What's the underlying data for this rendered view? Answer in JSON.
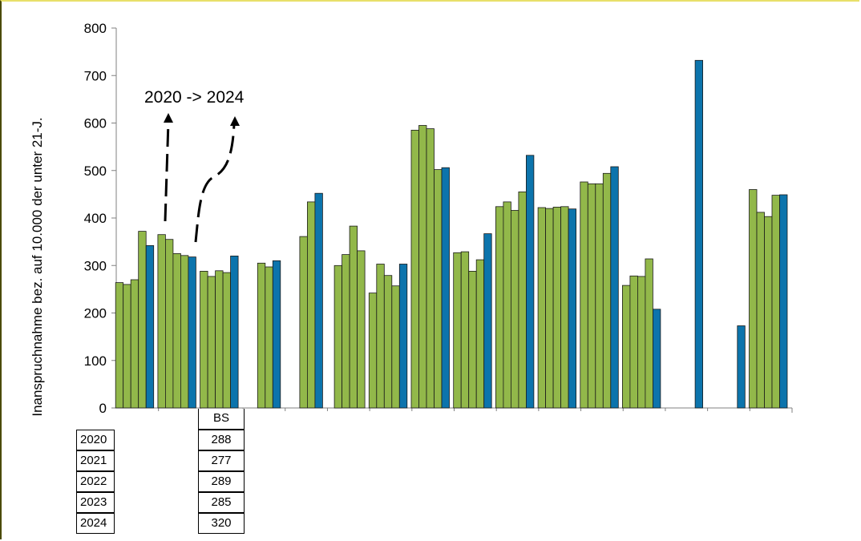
{
  "chart_data": {
    "type": "bar",
    "title": "",
    "ylabel": "Inanspruchnahme bez. auf 10.000 der unter 21-J.",
    "ylim": [
      0,
      800
    ],
    "yticks": [
      0,
      100,
      200,
      300,
      400,
      500,
      600,
      700,
      800
    ],
    "annotation": "2020 -> 2024",
    "colors": {
      "green": "#92b84a",
      "blue": "#0c74ac",
      "axis": "#808080"
    },
    "groups": [
      {
        "values": [
          264,
          260,
          270,
          372,
          342
        ],
        "highlight": [
          4
        ]
      },
      {
        "values": [
          365,
          355,
          325,
          321,
          318
        ],
        "highlight": [
          4
        ]
      },
      {
        "values": [
          288,
          277,
          289,
          285,
          320
        ],
        "highlight": [
          4
        ]
      },
      {
        "values": [
          305,
          297,
          310
        ],
        "highlight": [
          2
        ]
      },
      {
        "values": [
          361,
          434,
          452
        ],
        "highlight": [
          2
        ]
      },
      {
        "values": [
          300,
          323,
          383,
          331
        ],
        "highlight": []
      },
      {
        "values": [
          242,
          303,
          279,
          257,
          303
        ],
        "highlight": [
          4
        ]
      },
      {
        "values": [
          585,
          595,
          588,
          502,
          506
        ],
        "highlight": [
          4
        ]
      },
      {
        "values": [
          327,
          329,
          288,
          312,
          367
        ],
        "highlight": [
          4
        ]
      },
      {
        "values": [
          424,
          434,
          416,
          455,
          532
        ],
        "highlight": [
          4
        ]
      },
      {
        "values": [
          422,
          420,
          423,
          424,
          419
        ],
        "highlight": [
          4
        ]
      },
      {
        "values": [
          476,
          472,
          472,
          494,
          508
        ],
        "highlight": [
          4
        ]
      },
      {
        "values": [
          258,
          278,
          277,
          314,
          208
        ],
        "highlight": [
          4
        ]
      },
      {
        "values": [
          732
        ],
        "highlight": [
          0
        ]
      },
      {
        "values": [
          173
        ],
        "highlight": [
          0
        ]
      },
      {
        "values": [
          460,
          412,
          403,
          448,
          449
        ],
        "highlight": [
          4
        ]
      }
    ],
    "table": {
      "header": "BS",
      "years": [
        "2020",
        "2021",
        "2022",
        "2023",
        "2024"
      ],
      "values": [
        "288",
        "277",
        "289",
        "285",
        "320"
      ]
    }
  }
}
